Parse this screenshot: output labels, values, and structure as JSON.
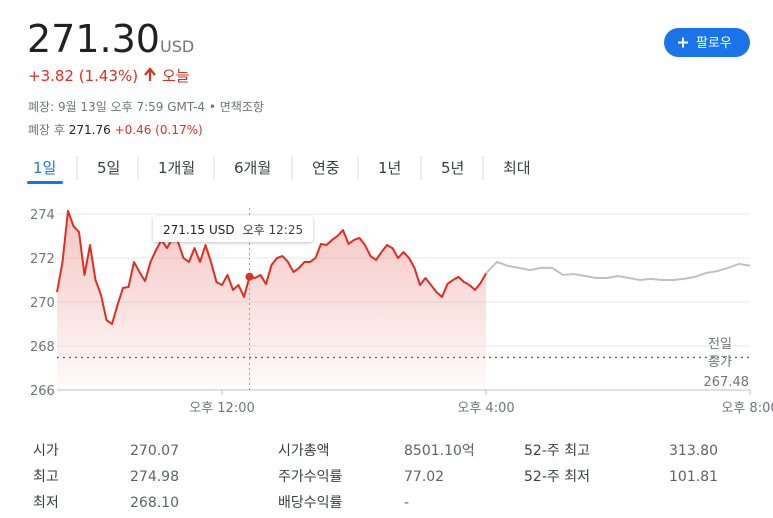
{
  "header": {
    "price": "271.30",
    "currency": "USD",
    "change": "+3.82 (1.43%)",
    "period": "오늘",
    "status": "폐장: 9월 13일 오후 7:59 GMT-4",
    "separator": "•",
    "disclaimer": "면책조항",
    "after_hours_label": "폐장 후",
    "after_hours_price": "271.76",
    "after_hours_change": "+0.46 (0.17%)"
  },
  "follow_button": "팔로우",
  "tabs": [
    "1일",
    "5일",
    "1개월",
    "6개월",
    "연중",
    "1년",
    "5년",
    "최대"
  ],
  "active_tab": 0,
  "chart_data": {
    "type": "line",
    "xlim": [
      570,
      1200
    ],
    "xticks": [
      {
        "value": 720,
        "label": "오후 12:00"
      },
      {
        "value": 960,
        "label": "오후 4:00"
      },
      {
        "value": 1200,
        "label": "오후 8:00"
      }
    ],
    "ylim": [
      266,
      274
    ],
    "yticks": [
      266,
      268,
      270,
      272,
      274
    ],
    "grid": true,
    "series": [
      {
        "color": "#d93025",
        "fill": true,
        "x": [
          570,
          575,
          580,
          585,
          590,
          595,
          600,
          605,
          610,
          615,
          620,
          625,
          630,
          635,
          640,
          645,
          650,
          655,
          660,
          665,
          670,
          675,
          680,
          685,
          690,
          695,
          700,
          705,
          710,
          715,
          720,
          725,
          730,
          735,
          740,
          745,
          750,
          755,
          760,
          765,
          770,
          775,
          780,
          785,
          790,
          795,
          800,
          805,
          810,
          815,
          820,
          825,
          830,
          835,
          840,
          845,
          850,
          855,
          860,
          865,
          870,
          875,
          880,
          885,
          890,
          895,
          900,
          905,
          910,
          915,
          920,
          925,
          930,
          935,
          940,
          945,
          950,
          955,
          960
        ],
        "values": [
          270.45,
          271.82,
          274.14,
          273.45,
          273.18,
          271.23,
          272.59,
          271.0,
          270.32,
          269.18,
          269.0,
          269.86,
          270.64,
          270.68,
          271.82,
          271.36,
          270.95,
          271.82,
          272.36,
          272.82,
          272.45,
          272.91,
          272.73,
          272.0,
          271.82,
          272.45,
          271.82,
          272.59,
          271.82,
          270.91,
          270.77,
          271.23,
          270.55,
          270.77,
          270.23,
          271.15,
          271.09,
          271.23,
          270.82,
          271.68,
          272.0,
          272.09,
          271.82,
          271.36,
          271.55,
          271.82,
          271.82,
          272.0,
          272.64,
          272.59,
          272.82,
          273.0,
          273.27,
          272.64,
          272.82,
          272.91,
          272.59,
          272.09,
          271.91,
          272.27,
          272.59,
          272.45,
          272.0,
          272.27,
          272.0,
          271.55,
          270.77,
          271.09,
          270.77,
          270.45,
          270.23,
          270.82,
          271.0,
          271.14,
          270.91,
          270.77,
          270.55,
          270.86,
          271.3
        ]
      },
      {
        "color": "#bdc1c6",
        "fill": false,
        "x": [
          960,
          970,
          980,
          990,
          1000,
          1010,
          1020,
          1030,
          1040,
          1050,
          1060,
          1070,
          1080,
          1090,
          1100,
          1110,
          1120,
          1130,
          1140,
          1150,
          1160,
          1170,
          1180,
          1190,
          1200
        ],
        "values": [
          271.3,
          271.82,
          271.64,
          271.55,
          271.45,
          271.55,
          271.55,
          271.23,
          271.27,
          271.18,
          271.09,
          271.09,
          271.18,
          271.09,
          271.0,
          271.05,
          271.0,
          271.0,
          271.05,
          271.14,
          271.32,
          271.4,
          271.55,
          271.73,
          271.65
        ]
      }
    ],
    "reference_line": {
      "labels": [
        "전일",
        "종가"
      ],
      "value": 267.48
    },
    "tooltip": {
      "value": 271.15,
      "unit": "USD",
      "time": "오후 12:25"
    }
  },
  "stats": [
    [
      [
        "시가",
        "270.07"
      ],
      [
        "최고",
        "274.98"
      ],
      [
        "최저",
        "268.10"
      ]
    ],
    [
      [
        "시가총액",
        "8501.10억"
      ],
      [
        "주가수익률",
        "77.02"
      ],
      [
        "배당수익률",
        "-"
      ]
    ],
    [
      [
        "52-주 최고",
        "313.80"
      ],
      [
        "52-주 최저",
        "101.81"
      ]
    ]
  ]
}
